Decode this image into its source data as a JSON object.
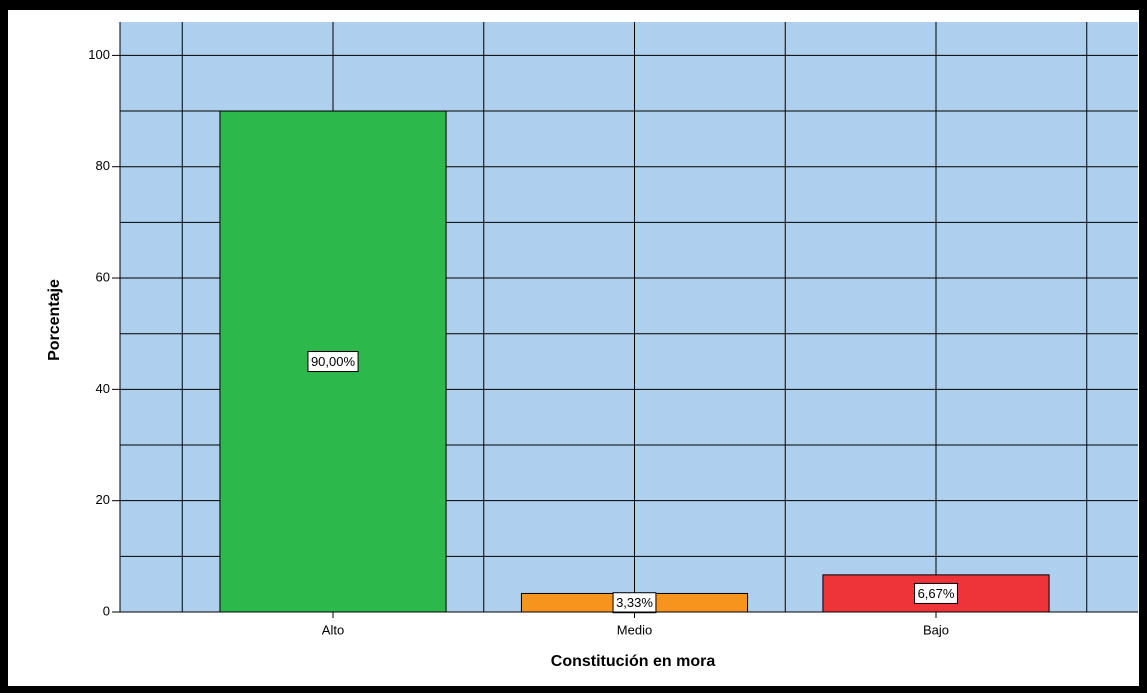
{
  "chart_data": {
    "type": "bar",
    "categories": [
      "Alto",
      "Medio",
      "Bajo"
    ],
    "values": [
      90,
      3.33,
      6.67
    ],
    "value_labels": [
      "90,00%",
      "3,33%",
      "6,67%"
    ],
    "colors": [
      "#2db84b",
      "#f7941d",
      "#ee3438"
    ],
    "xlabel": "Constitución en mora",
    "ylabel": "Porcentaje",
    "ylim": [
      0,
      106
    ],
    "yticks": [
      0,
      20,
      40,
      60,
      80,
      100
    ],
    "minor_yticks": [
      10,
      30,
      50,
      70,
      90
    ],
    "grid": true,
    "background": "#aecfee"
  }
}
